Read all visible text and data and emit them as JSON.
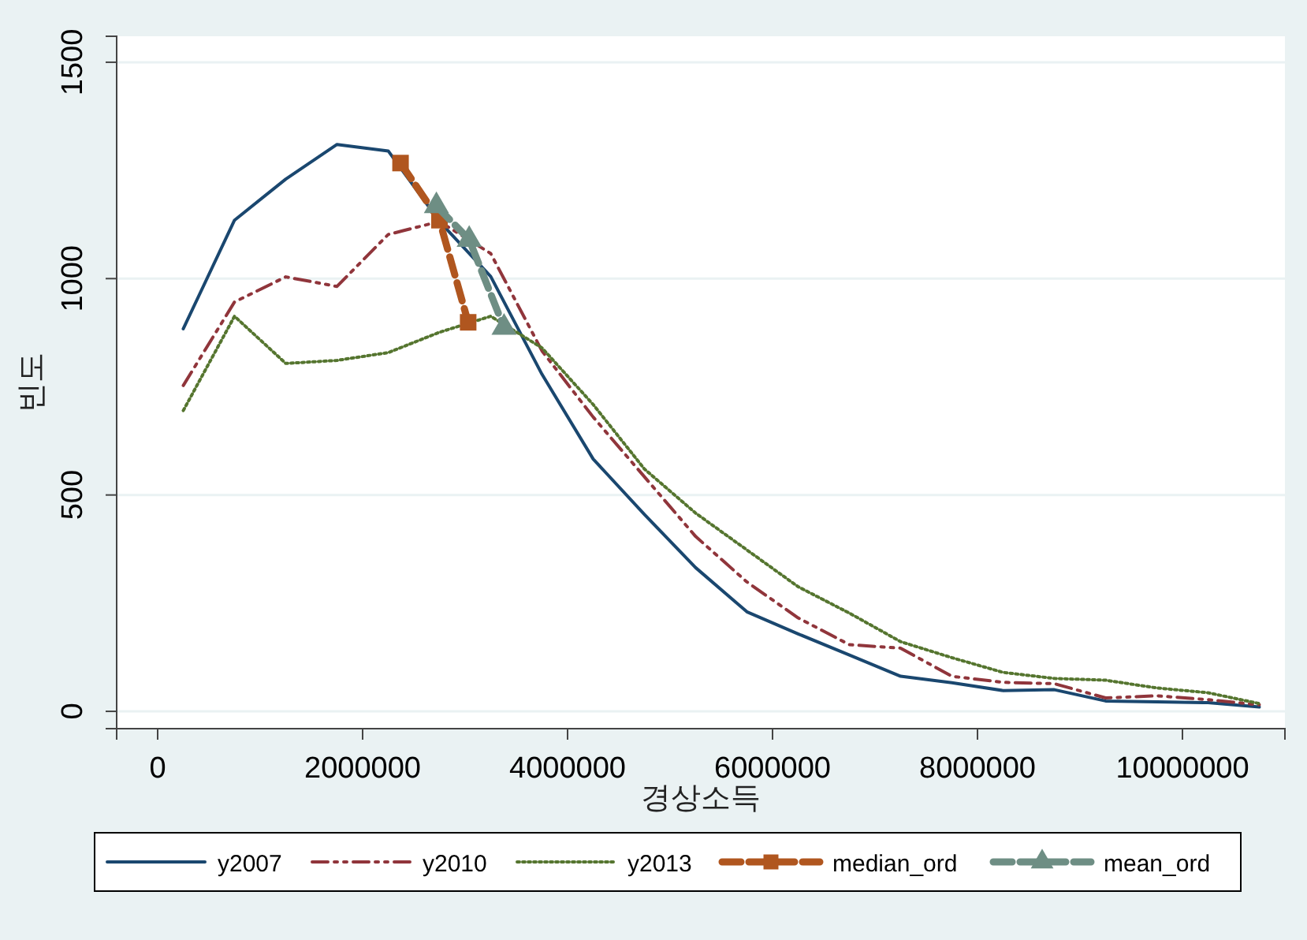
{
  "chart_data": {
    "type": "line",
    "xlabel": "경상소득",
    "ylabel": "빈도",
    "x": [
      250000,
      750000,
      1250000,
      1750000,
      2250000,
      2750000,
      3250000,
      3750000,
      4250000,
      4750000,
      5250000,
      5750000,
      6250000,
      6750000,
      7250000,
      7750000,
      8250000,
      8750000,
      9250000,
      9750000,
      10250000,
      10750000
    ],
    "series": [
      {
        "name": "y2007",
        "color": "#1a476f",
        "line_style": "solid",
        "values": [
          884,
          1135,
          1230,
          1310,
          1295,
          1132,
          1005,
          779,
          583,
          455,
          332,
          230,
          179,
          130,
          81,
          66,
          48,
          50,
          24,
          22,
          20,
          10
        ]
      },
      {
        "name": "y2010",
        "color": "#90353b",
        "line_style": "dashed",
        "values": [
          753,
          946,
          1004,
          982,
          1102,
          1132,
          1058,
          833,
          680,
          542,
          404,
          299,
          216,
          154,
          146,
          81,
          67,
          64,
          31,
          36,
          27,
          15
        ]
      },
      {
        "name": "y2013",
        "color": "#55752f",
        "line_style": "dotted",
        "values": [
          695,
          913,
          804,
          811,
          829,
          876,
          913,
          840,
          709,
          560,
          458,
          373,
          288,
          227,
          161,
          124,
          90,
          76,
          72,
          54,
          43,
          18
        ]
      },
      {
        "name": "median_ord",
        "color": "#b0561f",
        "line_style": "dashed",
        "marker": "square",
        "x": [
          2370000,
          2750000,
          3030000
        ],
        "values": [
          1267,
          1135,
          899
        ]
      },
      {
        "name": "mean_ord",
        "color": "#6e8e84",
        "line_style": "dashed",
        "marker": "triangle",
        "x": [
          2720000,
          3040000,
          3380000
        ],
        "values": [
          1168,
          1090,
          887
        ]
      }
    ],
    "xlim": [
      -400000,
      11000000
    ],
    "xticks": [
      0,
      2000000,
      4000000,
      6000000,
      8000000,
      10000000
    ],
    "ylim": [
      -40,
      1560
    ],
    "yticks": [
      0,
      500,
      1000,
      1500
    ],
    "grid": "y",
    "legend": "bottom"
  }
}
